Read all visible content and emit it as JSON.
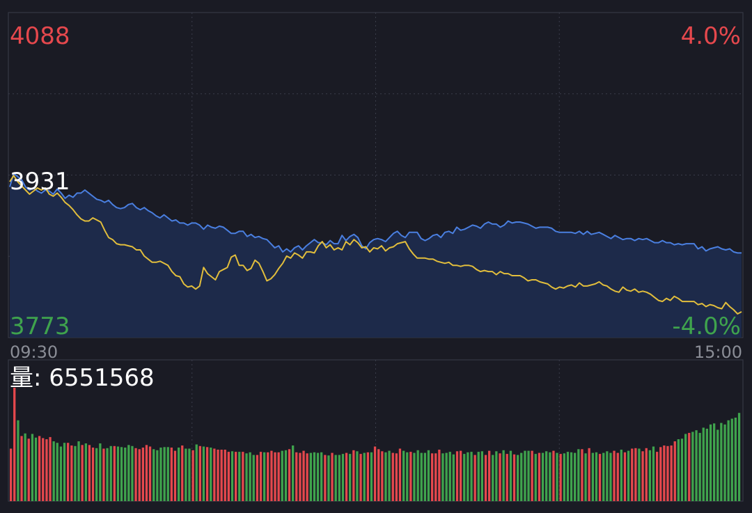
{
  "labels": {
    "price_high": "4088",
    "pct_high": "4.0%",
    "price_ref": "3931",
    "price_low": "3773",
    "pct_low": "-4.0%",
    "time_start": "09:30",
    "time_end": "15:00",
    "volume_label": "量: 6551568"
  },
  "colors": {
    "background": "#1a1b24",
    "grid": "#3a3d4a",
    "up_red": "#e5484d",
    "down_green": "#3fa34d",
    "price_blue": "#4a7fe0",
    "avg_yellow": "#e2be3c",
    "area_fill": "#1d2a4a",
    "text_white": "#ffffff",
    "time_gray": "#8a8d96"
  },
  "chart_data": [
    {
      "type": "line",
      "ylim": [
        3773,
        4088
      ],
      "reference": 3931,
      "right_axis_pct": [
        "4.0%",
        "-4.0%"
      ],
      "x_range": [
        "09:30",
        "15:00"
      ],
      "series": [
        {
          "key": "price",
          "color": "#4a7fe0",
          "fill": true,
          "values": [
            3919,
            3932,
            3929,
            3926,
            3919,
            3916,
            3918,
            3915,
            3913,
            3916,
            3915,
            3912,
            3917,
            3913,
            3908,
            3911,
            3909,
            3913,
            3913,
            3916,
            3913,
            3910,
            3907,
            3906,
            3904,
            3906,
            3902,
            3899,
            3898,
            3899,
            3902,
            3903,
            3899,
            3897,
            3899,
            3896,
            3894,
            3891,
            3889,
            3892,
            3889,
            3886,
            3887,
            3884,
            3884,
            3882,
            3884,
            3884,
            3882,
            3878,
            3882,
            3880,
            3879,
            3881,
            3880,
            3877,
            3874,
            3874,
            3876,
            3876,
            3871,
            3873,
            3870,
            3871,
            3869,
            3868,
            3864,
            3860,
            3862,
            3856,
            3859,
            3856,
            3860,
            3862,
            3858,
            3862,
            3865,
            3868,
            3865,
            3865,
            3863,
            3867,
            3864,
            3864,
            3872,
            3867,
            3871,
            3873,
            3870,
            3862,
            3859,
            3865,
            3868,
            3869,
            3868,
            3866,
            3870,
            3874,
            3876,
            3872,
            3870,
            3875,
            3875,
            3875,
            3869,
            3867,
            3869,
            3872,
            3873,
            3870,
            3875,
            3876,
            3874,
            3880,
            3877,
            3878,
            3880,
            3882,
            3881,
            3879,
            3883,
            3885,
            3883,
            3883,
            3880,
            3882,
            3886,
            3884,
            3885,
            3885,
            3884,
            3883,
            3881,
            3879,
            3880,
            3880,
            3880,
            3879,
            3876,
            3875,
            3875,
            3875,
            3875,
            3874,
            3876,
            3873,
            3876,
            3873,
            3874,
            3875,
            3873,
            3871,
            3869,
            3872,
            3870,
            3868,
            3869,
            3869,
            3867,
            3869,
            3868,
            3869,
            3867,
            3865,
            3865,
            3867,
            3865,
            3865,
            3863,
            3864,
            3863,
            3864,
            3864,
            3864,
            3859,
            3861,
            3857,
            3859,
            3860,
            3861,
            3859,
            3858,
            3859,
            3856,
            3855,
            3855
          ],
          "values_gap": "none"
        },
        {
          "key": "average",
          "color": "#e2be3c",
          "fill": false,
          "values": [
            3924,
            3930,
            3924,
            3920,
            3916,
            3912,
            3915,
            3918,
            3916,
            3918,
            3912,
            3910,
            3913,
            3909,
            3904,
            3901,
            3897,
            3892,
            3888,
            3886,
            3886,
            3889,
            3887,
            3885,
            3877,
            3870,
            3868,
            3864,
            3863,
            3863,
            3862,
            3861,
            3858,
            3858,
            3852,
            3849,
            3846,
            3846,
            3847,
            3845,
            3843,
            3837,
            3833,
            3832,
            3825,
            3822,
            3823,
            3820,
            3823,
            3841,
            3835,
            3832,
            3829,
            3837,
            3839,
            3841,
            3851,
            3853,
            3843,
            3843,
            3838,
            3840,
            3848,
            3845,
            3837,
            3828,
            3830,
            3834,
            3840,
            3845,
            3852,
            3850,
            3855,
            3853,
            3850,
            3856,
            3856,
            3855,
            3862,
            3866,
            3860,
            3863,
            3858,
            3860,
            3858,
            3866,
            3863,
            3868,
            3865,
            3860,
            3861,
            3856,
            3860,
            3859,
            3862,
            3857,
            3860,
            3861,
            3864,
            3865,
            3866,
            3859,
            3854,
            3850,
            3850,
            3850,
            3849,
            3849,
            3847,
            3846,
            3845,
            3846,
            3843,
            3843,
            3842,
            3843,
            3843,
            3842,
            3839,
            3837,
            3838,
            3837,
            3837,
            3834,
            3837,
            3835,
            3835,
            3833,
            3833,
            3833,
            3831,
            3828,
            3829,
            3829,
            3827,
            3826,
            3825,
            3822,
            3820,
            3822,
            3821,
            3823,
            3824,
            3822,
            3826,
            3823,
            3823,
            3824,
            3825,
            3827,
            3824,
            3823,
            3820,
            3818,
            3817,
            3822,
            3819,
            3818,
            3820,
            3817,
            3818,
            3817,
            3815,
            3812,
            3809,
            3808,
            3811,
            3809,
            3813,
            3811,
            3808,
            3808,
            3808,
            3808,
            3805,
            3806,
            3803,
            3805,
            3804,
            3802,
            3801,
            3807,
            3803,
            3800,
            3796,
            3798
          ],
          "values_gap": "none"
        }
      ]
    },
    {
      "type": "bar",
      "title": "量: 6551568",
      "bar_colors": [
        "#e5484d",
        "#3fa34d"
      ],
      "values": [
        1000,
        2160,
        1540,
        1240,
        1290,
        1190,
        1280,
        1210,
        1240,
        1200,
        1180,
        1220,
        1140,
        1110,
        1040,
        1110,
        1110,
        1060,
        1050,
        1140,
        1070,
        1100,
        1070,
        1020,
        1010,
        1100,
        1000,
        1010,
        1050,
        1050,
        1040,
        1030,
        1020,
        1070,
        1050,
        1010,
        990,
        1020,
        1070,
        1040,
        990,
        970,
        1020,
        1030,
        1030,
        1020,
        960,
        1020,
        1060,
        1000,
        1000,
        970,
        1080,
        1050,
        1040,
        1030,
        1020,
        1000,
        980,
        980,
        980,
        940,
        950,
        940,
        940,
        940,
        910,
        930,
        880,
        880,
        940,
        930,
        930,
        960,
        930,
        930,
        960,
        970,
        990,
        1060,
        930,
        920,
        960,
        910,
        920,
        930,
        920,
        930,
        880,
        870,
        920,
        880,
        880,
        900,
        920,
        900,
        970,
        950,
        900,
        920,
        930,
        930,
        1040,
        990,
        950,
        930,
        960,
        920,
        910,
        1000,
        960,
        930,
        940,
        920,
        970,
        920,
        920,
        970,
        910,
        910,
        980,
        910,
        920,
        940,
        890,
        950,
        960,
        900,
        930,
        940,
        880,
        940,
        950,
        880,
        960,
        880,
        950,
        910,
        970,
        900,
        960,
        890,
        880,
        920,
        960,
        960,
        960,
        900,
        920,
        920,
        950,
        930,
        960,
        920,
        900,
        910,
        940,
        930,
        920,
        990,
        990,
        910,
        1010,
        920,
        930,
        900,
        920,
        950,
        920,
        960,
        920,
        980,
        930,
        960,
        1000,
        1010,
        1000,
        950,
        1010,
        970,
        1040,
        940,
        1030,
        1060,
        1050,
        1060,
        1140,
        1180,
        1190,
        1280,
        1300,
        1320,
        1350,
        1300,
        1400,
        1380,
        1460,
        1480,
        1360,
        1490,
        1460,
        1540,
        1570,
        1590,
        1680
      ],
      "value_colors": [
        "up",
        "up",
        "down",
        "up",
        "down",
        "up",
        "down",
        "down",
        "up",
        "up",
        "up",
        "up",
        "down",
        "down",
        "down",
        "down",
        "up",
        "up",
        "down",
        "down",
        "up",
        "down",
        "up",
        "up",
        "down",
        "down",
        "up",
        "down",
        "down",
        "up",
        "down",
        "down",
        "down",
        "down",
        "down",
        "up",
        "up",
        "up",
        "up",
        "up",
        "down",
        "down",
        "down",
        "down",
        "down",
        "up",
        "up",
        "down",
        "up",
        "down",
        "down",
        "up",
        "down",
        "up",
        "down",
        "up",
        "down",
        "up",
        "up",
        "up",
        "up",
        "up",
        "down",
        "up",
        "down",
        "up",
        "down",
        "down",
        "down",
        "up",
        "up",
        "down",
        "up",
        "up",
        "up",
        "up",
        "down",
        "down",
        "up",
        "down",
        "up",
        "up",
        "up",
        "up",
        "down",
        "down",
        "down",
        "down",
        "up",
        "down",
        "up",
        "down",
        "down",
        "down",
        "up",
        "down",
        "up",
        "down",
        "up",
        "down",
        "up",
        "down",
        "up",
        "up",
        "up",
        "down",
        "down",
        "up",
        "up",
        "up",
        "down",
        "down",
        "up",
        "down",
        "down",
        "down",
        "down",
        "down",
        "up",
        "up",
        "up",
        "down",
        "down",
        "down",
        "down",
        "up",
        "up",
        "down",
        "down",
        "down",
        "up",
        "down",
        "down",
        "up",
        "up",
        "down",
        "down",
        "up",
        "down",
        "up",
        "down",
        "up",
        "down",
        "down",
        "down",
        "down",
        "up",
        "down",
        "up",
        "down",
        "down",
        "down",
        "up",
        "down",
        "up",
        "down",
        "down",
        "down",
        "down",
        "down",
        "up",
        "down",
        "up",
        "down",
        "down",
        "up",
        "down",
        "down",
        "down",
        "up",
        "up",
        "down",
        "up",
        "down",
        "up",
        "up",
        "down",
        "up",
        "up",
        "down",
        "down",
        "up",
        "up",
        "up",
        "up",
        "up",
        "up",
        "down",
        "down",
        "down",
        "up"
      ]
    }
  ]
}
